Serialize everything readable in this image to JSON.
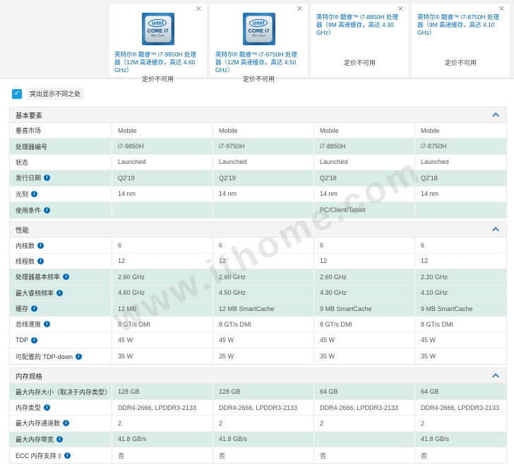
{
  "header": {
    "close_glyph": "✕",
    "badge": {
      "logo": "intel",
      "product": "CORE i7",
      "gen": "9th Gen"
    },
    "cards": [
      {
        "title": "英特尔® 酷睿™ i7-9850H 处理器（12M 高速缓存，高达 4.60 GHz）",
        "price": "定价不可用",
        "has_badge": true
      },
      {
        "title": "英特尔® 酷睿™ i7-9750H 处理器（12M 高速缓存，高达 4.50 GHz）",
        "price": "定价不可用",
        "has_badge": true
      },
      {
        "title": "英特尔® 酷睿™ i7-8850H 处理器（9M 高速缓存，高达 4.30 GHz）",
        "price": "定价不可用",
        "has_badge": false
      },
      {
        "title": "英特尔® 酷睿™ i7-8750H 处理器（9M 高速缓存，高达 4.10 GHz）",
        "price": "定价不可用",
        "has_badge": false
      }
    ]
  },
  "controls": {
    "highlight_label": "突出显示不同之处",
    "checkbox_checked": true,
    "check_glyph": "✓"
  },
  "table": {
    "info_glyph": "i",
    "sections": [
      {
        "title": "基本要素",
        "rows": [
          {
            "label": "垂直市场",
            "info": false,
            "highlight": false,
            "values": [
              "Mobile",
              "Mobile",
              "Mobile",
              "Mobile"
            ]
          },
          {
            "label": "处理器编号",
            "info": false,
            "highlight": true,
            "values": [
              "i7-9850H",
              "i7-9750H",
              "i7-8850H",
              "i7-8750H"
            ]
          },
          {
            "label": "状态",
            "info": false,
            "highlight": false,
            "values": [
              "Launched",
              "Launched",
              "Launched",
              "Launched"
            ]
          },
          {
            "label": "发行日期",
            "info": true,
            "highlight": true,
            "values": [
              "Q2'19",
              "Q2'19",
              "Q2'18",
              "Q2'18"
            ]
          },
          {
            "label": "光刻",
            "info": true,
            "highlight": false,
            "values": [
              "14 nm",
              "14 nm",
              "14 nm",
              "14 nm"
            ]
          },
          {
            "label": "使用条件",
            "info": true,
            "highlight": true,
            "values": [
              "",
              "",
              "PC/Client/Tablet",
              ""
            ]
          }
        ]
      },
      {
        "title": "性能",
        "rows": [
          {
            "label": "内核数",
            "info": true,
            "highlight": false,
            "values": [
              "6",
              "6",
              "6",
              "6"
            ]
          },
          {
            "label": "线程数",
            "info": true,
            "highlight": false,
            "values": [
              "12",
              "12",
              "12",
              "12"
            ]
          },
          {
            "label": "处理器基本频率",
            "info": true,
            "highlight": true,
            "values": [
              "2.60 GHz",
              "2.60 GHz",
              "2.60 GHz",
              "2.20 GHz"
            ]
          },
          {
            "label": "最大睿频频率",
            "info": true,
            "highlight": true,
            "values": [
              "4.60 GHz",
              "4.50 GHz",
              "4.30 GHz",
              "4.10 GHz"
            ]
          },
          {
            "label": "缓存",
            "info": true,
            "highlight": true,
            "values": [
              "12 MB",
              "12 MB SmartCache",
              "9 MB SmartCache",
              "9 MB SmartCache"
            ]
          },
          {
            "label": "总线速度",
            "info": true,
            "highlight": false,
            "values": [
              "8 GT/s DMI",
              "8 GT/s DMI",
              "8 GT/s DMI",
              "8 GT/s DMI"
            ]
          },
          {
            "label": "TDP",
            "info": true,
            "highlight": false,
            "values": [
              "45 W",
              "45 W",
              "45 W",
              "45 W"
            ]
          },
          {
            "label": "可配置的 TDP-down",
            "info": true,
            "highlight": false,
            "values": [
              "35 W",
              "35 W",
              "35 W",
              "35 W"
            ]
          }
        ]
      },
      {
        "title": "内存规格",
        "rows": [
          {
            "label": "最大内存大小（取决于内存类型）",
            "info": true,
            "highlight": true,
            "values": [
              "128 GB",
              "128 GB",
              "64 GB",
              "64 GB"
            ]
          },
          {
            "label": "内存类型",
            "info": true,
            "highlight": false,
            "values": [
              "DDR4-2666, LPDDR3-2133",
              "DDR4-2666, LPDDR3-2133",
              "DDR4-2666, LPDDR3-2133",
              "DDR4-2666, LPDDR3-2133"
            ]
          },
          {
            "label": "最大内存通道数",
            "info": true,
            "highlight": false,
            "values": [
              "2",
              "2",
              "2",
              "2"
            ]
          },
          {
            "label": "最大内存带宽",
            "info": true,
            "highlight": true,
            "values": [
              "41.8 GB/s",
              "41.8 GB/s",
              "",
              "41.8 GB/s"
            ]
          },
          {
            "label": "ECC 内存支持 ‡",
            "info": true,
            "highlight": false,
            "values": [
              "否",
              "否",
              "否",
              "否"
            ]
          }
        ]
      }
    ]
  },
  "watermark": {
    "text": "www.ithome.com"
  },
  "colors": {
    "intel_blue": "#0068b5",
    "highlight_row": "#d9ece7",
    "checkbox_blue": "#14a0dc",
    "band_gray": "#f3f3f3"
  }
}
